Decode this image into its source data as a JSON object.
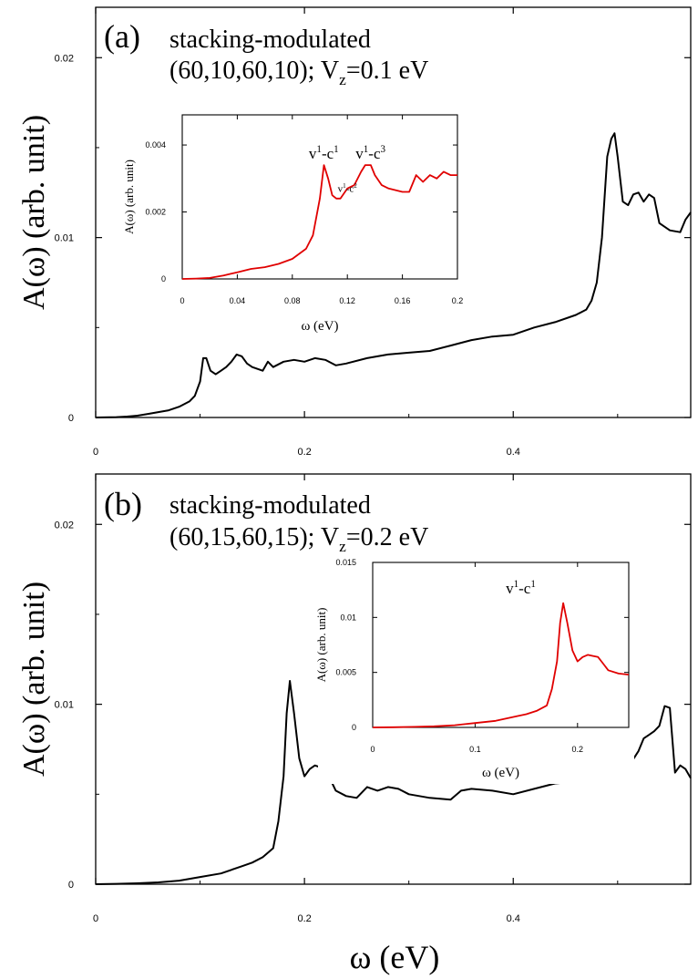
{
  "figure": {
    "xlabel": "ω (eV)"
  },
  "chart_data": [
    {
      "type": "line",
      "panel": "(a)",
      "title_line1": "stacking-modulated",
      "title_line2_pre": "(60,10,60,10); V",
      "title_line2_sub": "z",
      "title_line2_post": "=0.1 eV",
      "ylabel": "A(ω) (arb. unit)",
      "xlim": [
        0,
        0.57
      ],
      "ylim": [
        0,
        0.0228
      ],
      "xticks": [
        0,
        0.2,
        0.4
      ],
      "xticklabels": [
        "0",
        "0.2",
        "0.4"
      ],
      "yticks": [
        0,
        0.01,
        0.02
      ],
      "yticklabels": [
        "0",
        "0.01",
        "0.02"
      ],
      "line_color": "#000000",
      "series": [
        {
          "x": [
            0,
            0.02,
            0.03,
            0.04,
            0.05,
            0.06,
            0.07,
            0.08,
            0.09,
            0.095,
            0.1,
            0.103,
            0.106,
            0.11,
            0.115,
            0.12,
            0.125,
            0.13,
            0.135,
            0.14,
            0.145,
            0.15,
            0.16,
            0.165,
            0.17,
            0.18,
            0.19,
            0.2,
            0.21,
            0.22,
            0.23,
            0.24,
            0.26,
            0.28,
            0.3,
            0.32,
            0.34,
            0.36,
            0.38,
            0.4,
            0.42,
            0.44,
            0.46,
            0.47,
            0.475,
            0.48,
            0.485,
            0.49,
            0.494,
            0.497,
            0.5,
            0.505,
            0.51,
            0.515,
            0.52,
            0.525,
            0.53,
            0.535,
            0.54,
            0.55,
            0.56,
            0.565,
            0.57
          ],
          "y": [
            0,
            2e-05,
            5e-05,
            0.0001,
            0.0002,
            0.0003,
            0.0004,
            0.0006,
            0.0009,
            0.0012,
            0.002,
            0.0033,
            0.0033,
            0.0026,
            0.0024,
            0.0026,
            0.0028,
            0.0031,
            0.0035,
            0.0034,
            0.003,
            0.0028,
            0.0026,
            0.0031,
            0.0028,
            0.0031,
            0.0032,
            0.0031,
            0.0033,
            0.0032,
            0.0029,
            0.003,
            0.0033,
            0.0035,
            0.0036,
            0.0037,
            0.004,
            0.0043,
            0.0045,
            0.0046,
            0.005,
            0.0053,
            0.0057,
            0.006,
            0.0065,
            0.0075,
            0.01,
            0.0145,
            0.0155,
            0.0158,
            0.0145,
            0.012,
            0.0118,
            0.0124,
            0.0125,
            0.012,
            0.0124,
            0.0122,
            0.0108,
            0.0104,
            0.0103,
            0.011,
            0.0114
          ]
        }
      ],
      "inset": {
        "xlabel": "ω (eV)",
        "ylabel": "A(ω) (arb. unit)",
        "xlim": [
          0,
          0.2
        ],
        "ylim": [
          0,
          0.0049
        ],
        "xticks": [
          0,
          0.04,
          0.08,
          0.12,
          0.16,
          0.2
        ],
        "xticklabels": [
          "0",
          "0.04",
          "0.08",
          "0.12",
          "0.16",
          "0.2"
        ],
        "yticks": [
          0,
          0.002,
          0.004
        ],
        "yticklabels": [
          "0",
          "0.002",
          "0.004"
        ],
        "line_color": "#e00000",
        "x": [
          0,
          0.01,
          0.02,
          0.03,
          0.04,
          0.05,
          0.06,
          0.07,
          0.08,
          0.09,
          0.095,
          0.1,
          0.103,
          0.106,
          0.109,
          0.112,
          0.115,
          0.12,
          0.125,
          0.13,
          0.133,
          0.137,
          0.14,
          0.145,
          0.15,
          0.16,
          0.165,
          0.17,
          0.175,
          0.18,
          0.185,
          0.19,
          0.195,
          0.2
        ],
        "y": [
          0,
          1e-05,
          3e-05,
          0.0001,
          0.0002,
          0.0003,
          0.00035,
          0.00045,
          0.0006,
          0.0009,
          0.0013,
          0.0024,
          0.0034,
          0.003,
          0.0025,
          0.0024,
          0.0024,
          0.0027,
          0.0028,
          0.0032,
          0.0034,
          0.0034,
          0.0031,
          0.0028,
          0.0027,
          0.0026,
          0.0026,
          0.0031,
          0.0029,
          0.0031,
          0.003,
          0.0032,
          0.0031,
          0.0031
        ],
        "annotations": [
          {
            "base": "v",
            "sup1": "1",
            "mid": "-c",
            "sup2": "1",
            "x": 0.092,
            "y": 0.0036,
            "size": "large"
          },
          {
            "base": "v",
            "sup1": "1",
            "mid": "-c",
            "sup2": "2",
            "x": 0.113,
            "y": 0.0026,
            "size": "small"
          },
          {
            "base": "v",
            "sup1": "1",
            "mid": "-c",
            "sup2": "3",
            "x": 0.126,
            "y": 0.0036,
            "size": "large"
          }
        ]
      }
    },
    {
      "type": "line",
      "panel": "(b)",
      "title_line1": "stacking-modulated",
      "title_line2_pre": "(60,15,60,15); V",
      "title_line2_sub": "z",
      "title_line2_post": "=0.2 eV",
      "ylabel": "A(ω) (arb. unit)",
      "xlim": [
        0,
        0.57
      ],
      "ylim": [
        0,
        0.0228
      ],
      "xticks": [
        0,
        0.2,
        0.4
      ],
      "xticklabels": [
        "0",
        "0.2",
        "0.4"
      ],
      "yticks": [
        0,
        0.01,
        0.02
      ],
      "yticklabels": [
        "0",
        "0.01",
        "0.02"
      ],
      "line_color": "#000000",
      "series": [
        {
          "x": [
            0,
            0.02,
            0.04,
            0.06,
            0.08,
            0.1,
            0.12,
            0.14,
            0.15,
            0.16,
            0.17,
            0.175,
            0.18,
            0.183,
            0.186,
            0.19,
            0.195,
            0.2,
            0.205,
            0.21,
            0.215,
            0.22,
            0.225,
            0.23,
            0.24,
            0.25,
            0.26,
            0.27,
            0.28,
            0.29,
            0.3,
            0.32,
            0.34,
            0.35,
            0.36,
            0.38,
            0.4,
            0.42,
            0.44,
            0.46,
            0.48,
            0.5,
            0.51,
            0.52,
            0.525,
            0.53,
            0.535,
            0.54,
            0.545,
            0.55,
            0.555,
            0.56,
            0.565,
            0.57
          ],
          "y": [
            0,
            2e-05,
            5e-05,
            0.0001,
            0.0002,
            0.0004,
            0.0006,
            0.001,
            0.0012,
            0.0015,
            0.002,
            0.0035,
            0.006,
            0.0095,
            0.0113,
            0.0095,
            0.007,
            0.006,
            0.0064,
            0.0066,
            0.0065,
            0.0064,
            0.0058,
            0.0052,
            0.0049,
            0.0048,
            0.0054,
            0.0052,
            0.0054,
            0.0053,
            0.005,
            0.0048,
            0.0047,
            0.0052,
            0.0053,
            0.0052,
            0.005,
            0.0053,
            0.0056,
            0.0057,
            0.0058,
            0.0061,
            0.0065,
            0.0074,
            0.0081,
            0.0083,
            0.0085,
            0.0088,
            0.0099,
            0.0098,
            0.0062,
            0.0066,
            0.0064,
            0.0059
          ]
        }
      ],
      "inset": {
        "xlabel": "ω (eV)",
        "ylabel": "A(ω) (arb. unit)",
        "xlim": [
          0,
          0.25
        ],
        "ylim": [
          0,
          0.015
        ],
        "xticks": [
          0,
          0.1,
          0.2
        ],
        "xticklabels": [
          "0",
          "0.1",
          "0.2"
        ],
        "yticks": [
          0,
          0.005,
          0.01,
          0.015
        ],
        "yticklabels": [
          "0",
          "0.005",
          "0.01",
          "0.015"
        ],
        "line_color": "#e00000",
        "x": [
          0,
          0.02,
          0.04,
          0.06,
          0.08,
          0.1,
          0.12,
          0.14,
          0.15,
          0.16,
          0.17,
          0.175,
          0.18,
          0.183,
          0.186,
          0.19,
          0.195,
          0.2,
          0.205,
          0.21,
          0.215,
          0.22,
          0.225,
          0.23,
          0.24,
          0.25
        ],
        "y": [
          0,
          2e-05,
          5e-05,
          0.0001,
          0.0002,
          0.0004,
          0.0006,
          0.001,
          0.0012,
          0.0015,
          0.002,
          0.0035,
          0.006,
          0.0095,
          0.0113,
          0.0095,
          0.007,
          0.006,
          0.0064,
          0.0066,
          0.0065,
          0.0064,
          0.0058,
          0.0052,
          0.0049,
          0.0048
        ],
        "annotations": [
          {
            "base": "v",
            "sup1": "1",
            "mid": "-c",
            "sup2": "1",
            "x": 0.13,
            "y": 0.0122,
            "size": "large"
          }
        ]
      }
    }
  ]
}
